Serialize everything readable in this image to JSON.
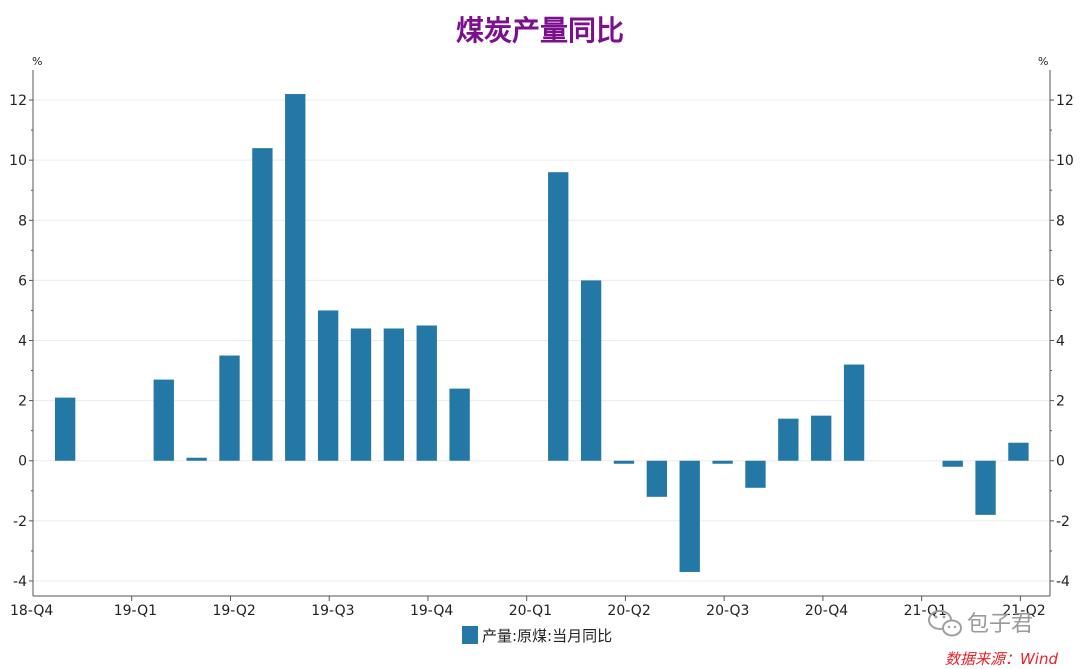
{
  "watermark": "包子君",
  "source_note": "数据来源：Wind",
  "colors": {
    "title": "#7b0f8e",
    "bar": "#2378a5",
    "source": "#e8202a"
  },
  "chart_data": {
    "type": "bar",
    "title": "煤炭产量同比",
    "left_unit": "%",
    "right_unit": "%",
    "ylim": [
      -4.5,
      13
    ],
    "yticks": [
      -4,
      -2,
      0,
      2,
      4,
      6,
      8,
      10,
      12
    ],
    "quarter_labels": [
      "18-Q4",
      "19-Q1",
      "19-Q2",
      "19-Q3",
      "19-Q4",
      "20-Q1",
      "20-Q2",
      "20-Q3",
      "20-Q4",
      "21-Q1",
      "21-Q2"
    ],
    "series": [
      {
        "name": "产量:原煤:当月同比",
        "values": [
          2.1,
          null,
          null,
          2.7,
          0.1,
          3.5,
          10.4,
          12.2,
          5.0,
          4.4,
          4.4,
          4.5,
          2.4,
          null,
          null,
          9.6,
          6.0,
          -0.1,
          -1.2,
          -3.7,
          -0.1,
          -0.9,
          1.4,
          1.5,
          3.2,
          null,
          null,
          -0.2,
          -1.8,
          0.6
        ]
      }
    ],
    "grid": true,
    "legend_position": "bottom"
  }
}
